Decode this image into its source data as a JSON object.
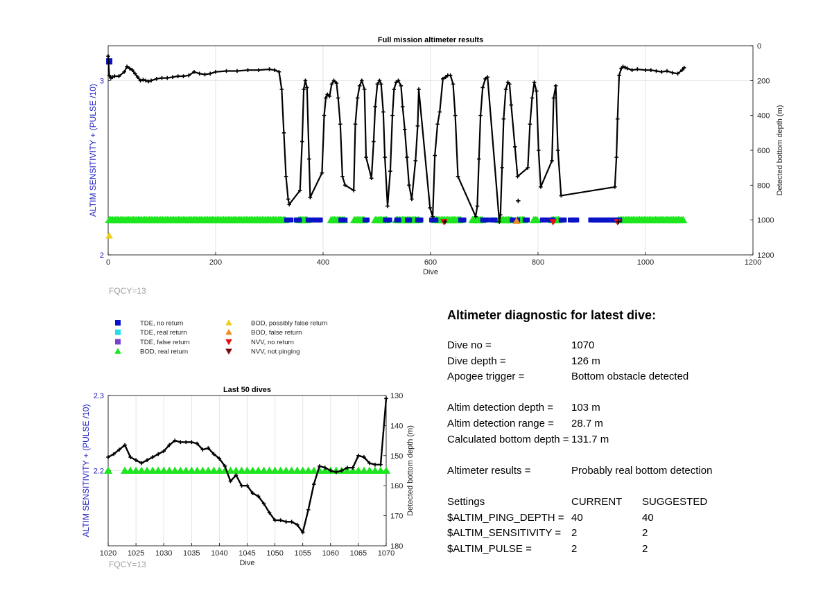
{
  "colors": {
    "tde_no_return": "#0a12c8",
    "tde_real_return": "#22dcf0",
    "tde_false_return": "#7a3fd0",
    "bod_real_return": "#1ee61e",
    "bod_possibly_false": "#f0cc1c",
    "bod_false_return": "#f08c1c",
    "nvv_no_return": "#e01010",
    "nvv_not_pinging": "#7a0a0a",
    "depth_line": "#000000",
    "left_axis_label": "#2020c0",
    "grid": "#e3e3e3",
    "fqcy_text": "#a0a0a0"
  },
  "legend": [
    {
      "label": "TDE, no return",
      "marker": "square",
      "color_key": "tde_no_return"
    },
    {
      "label": "TDE, real return",
      "marker": "square",
      "color_key": "tde_real_return"
    },
    {
      "label": "TDE, false return",
      "marker": "square",
      "color_key": "tde_false_return"
    },
    {
      "label": "BOD, real return",
      "marker": "triangle-up",
      "color_key": "bod_real_return"
    },
    {
      "label": "BOD, possibly false return",
      "marker": "triangle-up",
      "color_key": "bod_possibly_false"
    },
    {
      "label": "BOD, false return",
      "marker": "triangle-up",
      "color_key": "bod_false_return"
    },
    {
      "label": "NVV, no return",
      "marker": "triangle-down",
      "color_key": "nvv_no_return"
    },
    {
      "label": "NVV, not pinging",
      "marker": "triangle-down",
      "color_key": "nvv_not_pinging"
    }
  ],
  "chart_data": [
    {
      "type": "scatter",
      "title": "Full mission altimeter results",
      "xlabel": "Dive",
      "ylabel": "ALTIM SENSITIVITY + (PULSE /10)",
      "y2label": "Detected bottom depth (m)",
      "xlim": [
        0,
        1200
      ],
      "ylim": [
        2,
        3.2
      ],
      "y2lim": [
        1200,
        0
      ],
      "y2_reversed": true,
      "xticks": [
        "0",
        "200",
        "400",
        "600",
        "800",
        "1000",
        "1200"
      ],
      "yticks": [
        "2",
        "3"
      ],
      "y2ticks": [
        "0",
        "200",
        "400",
        "600",
        "800",
        "1000",
        "1200"
      ],
      "grid": true,
      "note": "FQCY=13",
      "depth_series": {
        "name": "Detected bottom depth",
        "x": [
          0,
          2,
          5,
          8,
          12,
          20,
          30,
          35,
          40,
          45,
          50,
          55,
          60,
          65,
          70,
          75,
          80,
          90,
          100,
          110,
          120,
          130,
          140,
          150,
          160,
          170,
          180,
          190,
          200,
          220,
          240,
          260,
          280,
          300,
          310,
          318,
          323,
          327,
          331,
          335,
          337,
          357,
          361,
          364,
          367,
          370,
          374,
          376,
          398,
          402,
          405,
          408,
          412,
          416,
          420,
          425,
          428,
          432,
          436,
          441,
          457,
          460,
          464,
          468,
          472,
          477,
          480,
          490,
          494,
          497,
          501,
          505,
          508,
          512,
          515,
          520,
          525,
          529,
          532,
          536,
          540,
          545,
          548,
          552,
          556,
          560,
          565,
          572,
          576,
          578,
          599,
          604,
          608,
          613,
          617,
          623,
          628,
          632,
          637,
          642,
          646,
          651,
          684,
          687,
          690,
          693,
          697,
          702,
          706,
          728,
          730,
          733,
          736,
          740,
          744,
          747,
          750,
          757,
          762,
          781,
          785,
          789,
          793,
          797,
          801,
          805,
          826,
          829,
          833,
          837,
          843,
          943,
          946,
          948,
          951,
          955,
          958,
          962,
          966,
          975,
          985,
          1000,
          1010,
          1020,
          1030,
          1040,
          1050,
          1060,
          1068,
          1072
        ],
        "y": [
          60,
          170,
          185,
          180,
          175,
          175,
          150,
          120,
          130,
          140,
          160,
          180,
          200,
          195,
          200,
          205,
          200,
          190,
          185,
          185,
          180,
          175,
          175,
          170,
          150,
          160,
          165,
          160,
          150,
          145,
          145,
          140,
          140,
          135,
          140,
          150,
          250,
          500,
          750,
          880,
          910,
          830,
          550,
          250,
          200,
          240,
          650,
          870,
          730,
          400,
          300,
          280,
          290,
          220,
          200,
          215,
          300,
          450,
          750,
          800,
          830,
          450,
          300,
          230,
          200,
          250,
          640,
          760,
          550,
          350,
          220,
          200,
          220,
          380,
          640,
          920,
          720,
          400,
          250,
          210,
          200,
          230,
          350,
          480,
          640,
          800,
          880,
          660,
          460,
          250,
          930,
          980,
          630,
          450,
          380,
          190,
          180,
          170,
          170,
          220,
          400,
          750,
          980,
          920,
          650,
          400,
          240,
          190,
          180,
          1010,
          970,
          700,
          420,
          250,
          210,
          220,
          340,
          580,
          750,
          700,
          450,
          300,
          210,
          260,
          600,
          810,
          660,
          300,
          230,
          600,
          860,
          810,
          640,
          420,
          170,
          130,
          120,
          125,
          130,
          140,
          135,
          140,
          140,
          145,
          150,
          145,
          155,
          160,
          140,
          126
        ]
      },
      "sensitivity_segments": {
        "bod_real_return": [
          [
            2,
            330
          ],
          [
            355,
            372
          ],
          [
            415,
            440
          ],
          [
            458,
            478
          ],
          [
            497,
            518
          ],
          [
            536,
            578
          ],
          [
            608,
            656
          ],
          [
            678,
            698
          ],
          [
            727,
            752
          ],
          [
            762,
            776
          ],
          [
            792,
            800
          ],
          [
            826,
            838
          ],
          [
            950,
            1072
          ]
        ],
        "tde_no_return": [
          [
            332,
            340
          ],
          [
            350,
            357
          ],
          [
            372,
            380
          ],
          [
            385,
            395
          ],
          [
            433,
            441
          ],
          [
            478,
            483
          ],
          [
            516,
            525
          ],
          [
            537,
            542
          ],
          [
            557,
            562
          ],
          [
            576,
            583
          ],
          [
            602,
            610
          ],
          [
            656,
            662
          ],
          [
            697,
            706
          ],
          [
            714,
            720
          ],
          [
            752,
            762
          ],
          [
            776,
            780
          ],
          [
            808,
            815
          ],
          [
            822,
            829
          ],
          [
            843,
            850
          ],
          [
            860,
            872
          ],
          [
            898,
            952
          ]
        ],
        "y": 2.2
      },
      "extra_markers": [
        {
          "x": 2,
          "y": 3.11,
          "color_key": "tde_no_return",
          "marker": "square"
        },
        {
          "x": 2,
          "y": 2.11,
          "color_key": "bod_possibly_false",
          "marker": "triangle-up"
        },
        {
          "x": 625,
          "y": 2.19,
          "color_key": "nvv_no_return",
          "marker": "triangle-down"
        },
        {
          "x": 828,
          "y": 2.19,
          "color_key": "nvv_no_return",
          "marker": "triangle-down"
        },
        {
          "x": 948,
          "y": 2.19,
          "color_key": "nvv_no_return",
          "marker": "triangle-down"
        },
        {
          "x": 760,
          "y": 2.195,
          "color_key": "bod_false_return",
          "marker": "triangle-up"
        }
      ],
      "extra_depth_points": [
        {
          "x": 763,
          "y": 890
        },
        {
          "x": 627,
          "y": 1010
        },
        {
          "x": 950,
          "y": 1010
        }
      ]
    },
    {
      "type": "scatter",
      "title": "Last 50 dives",
      "xlabel": "Dive",
      "ylabel": "ALTIM SENSITIVITY + (PULSE /10)",
      "y2label": "Detected bottom depth (m)",
      "xlim": [
        1020,
        1070
      ],
      "ylim": [
        2.1,
        2.3
      ],
      "y2lim": [
        180,
        130
      ],
      "y2_reversed": true,
      "xticks": [
        "1020",
        "1025",
        "1030",
        "1035",
        "1040",
        "1045",
        "1050",
        "1055",
        "1060",
        "1065",
        "1070"
      ],
      "yticks": [
        "2.2",
        "2.3"
      ],
      "y2ticks": [
        "130",
        "140",
        "150",
        "160",
        "170",
        "180"
      ],
      "grid": true,
      "note": "FQCY=13",
      "depth_series": {
        "name": "Detected bottom depth",
        "x": [
          1020,
          1021,
          1022,
          1023,
          1024,
          1025,
          1026,
          1027,
          1028,
          1029,
          1030,
          1031,
          1032,
          1033,
          1034,
          1035,
          1036,
          1037,
          1038,
          1039,
          1040,
          1041,
          1042,
          1043,
          1044,
          1045,
          1046,
          1047,
          1048,
          1049,
          1050,
          1051,
          1052,
          1053,
          1054,
          1055,
          1056,
          1057,
          1058,
          1059,
          1060,
          1061,
          1062,
          1063,
          1064,
          1065,
          1066,
          1067,
          1068,
          1069,
          1070
        ],
        "y": [
          150.5,
          149.5,
          148,
          146.5,
          150.5,
          151.5,
          152.5,
          151.5,
          150.5,
          149.5,
          148.5,
          146.5,
          145,
          145.5,
          145.5,
          145.5,
          146,
          148,
          147.5,
          149.5,
          151,
          153.5,
          158.5,
          156.5,
          160,
          160,
          162.5,
          163.5,
          166,
          169,
          171.5,
          171.5,
          172,
          172,
          173,
          175.5,
          168,
          159.5,
          153.5,
          154,
          155,
          155.5,
          155,
          154,
          154,
          150,
          150.5,
          152.5,
          153,
          153,
          131
        ]
      },
      "sensitivity_triangles": {
        "x": [
          1020,
          1023,
          1024,
          1025,
          1026,
          1027,
          1028,
          1029,
          1030,
          1031,
          1032,
          1033,
          1034,
          1035,
          1036,
          1037,
          1038,
          1039,
          1040,
          1041,
          1042,
          1043,
          1044,
          1045,
          1046,
          1047,
          1048,
          1049,
          1050,
          1051,
          1052,
          1053,
          1054,
          1055,
          1056,
          1057,
          1058,
          1059,
          1060,
          1061,
          1062,
          1063,
          1064,
          1065,
          1066,
          1067,
          1068,
          1069,
          1070
        ],
        "y": 2.2,
        "color_key": "bod_real_return"
      }
    }
  ],
  "diagnostic": {
    "title": "Altimeter diagnostic for latest dive:",
    "dive_no_label": "Dive no =",
    "dive_no": "1070",
    "dive_depth_label": "Dive depth =",
    "dive_depth": "126 m",
    "apogee_label": "Apogee trigger =",
    "apogee": "Bottom obstacle detected",
    "altim_det_depth_label": "Altim detection depth =",
    "altim_det_depth": "103 m",
    "altim_det_range_label": "Altim detection range =",
    "altim_det_range": "28.7 m",
    "calc_bottom_label": "Calculated bottom depth =",
    "calc_bottom": "131.7 m",
    "results_label": "Altimeter results =",
    "results": "Probably real bottom detection",
    "settings_label": "Settings",
    "current_label": "CURRENT",
    "suggested_label": "SUGGESTED",
    "settings": [
      {
        "name": "$ALTIM_PING_DEPTH =",
        "current": "40",
        "suggested": "40"
      },
      {
        "name": "$ALTIM_SENSITIVITY =",
        "current": "2",
        "suggested": "2"
      },
      {
        "name": "$ALTIM_PULSE =",
        "current": "2",
        "suggested": "2"
      }
    ]
  }
}
